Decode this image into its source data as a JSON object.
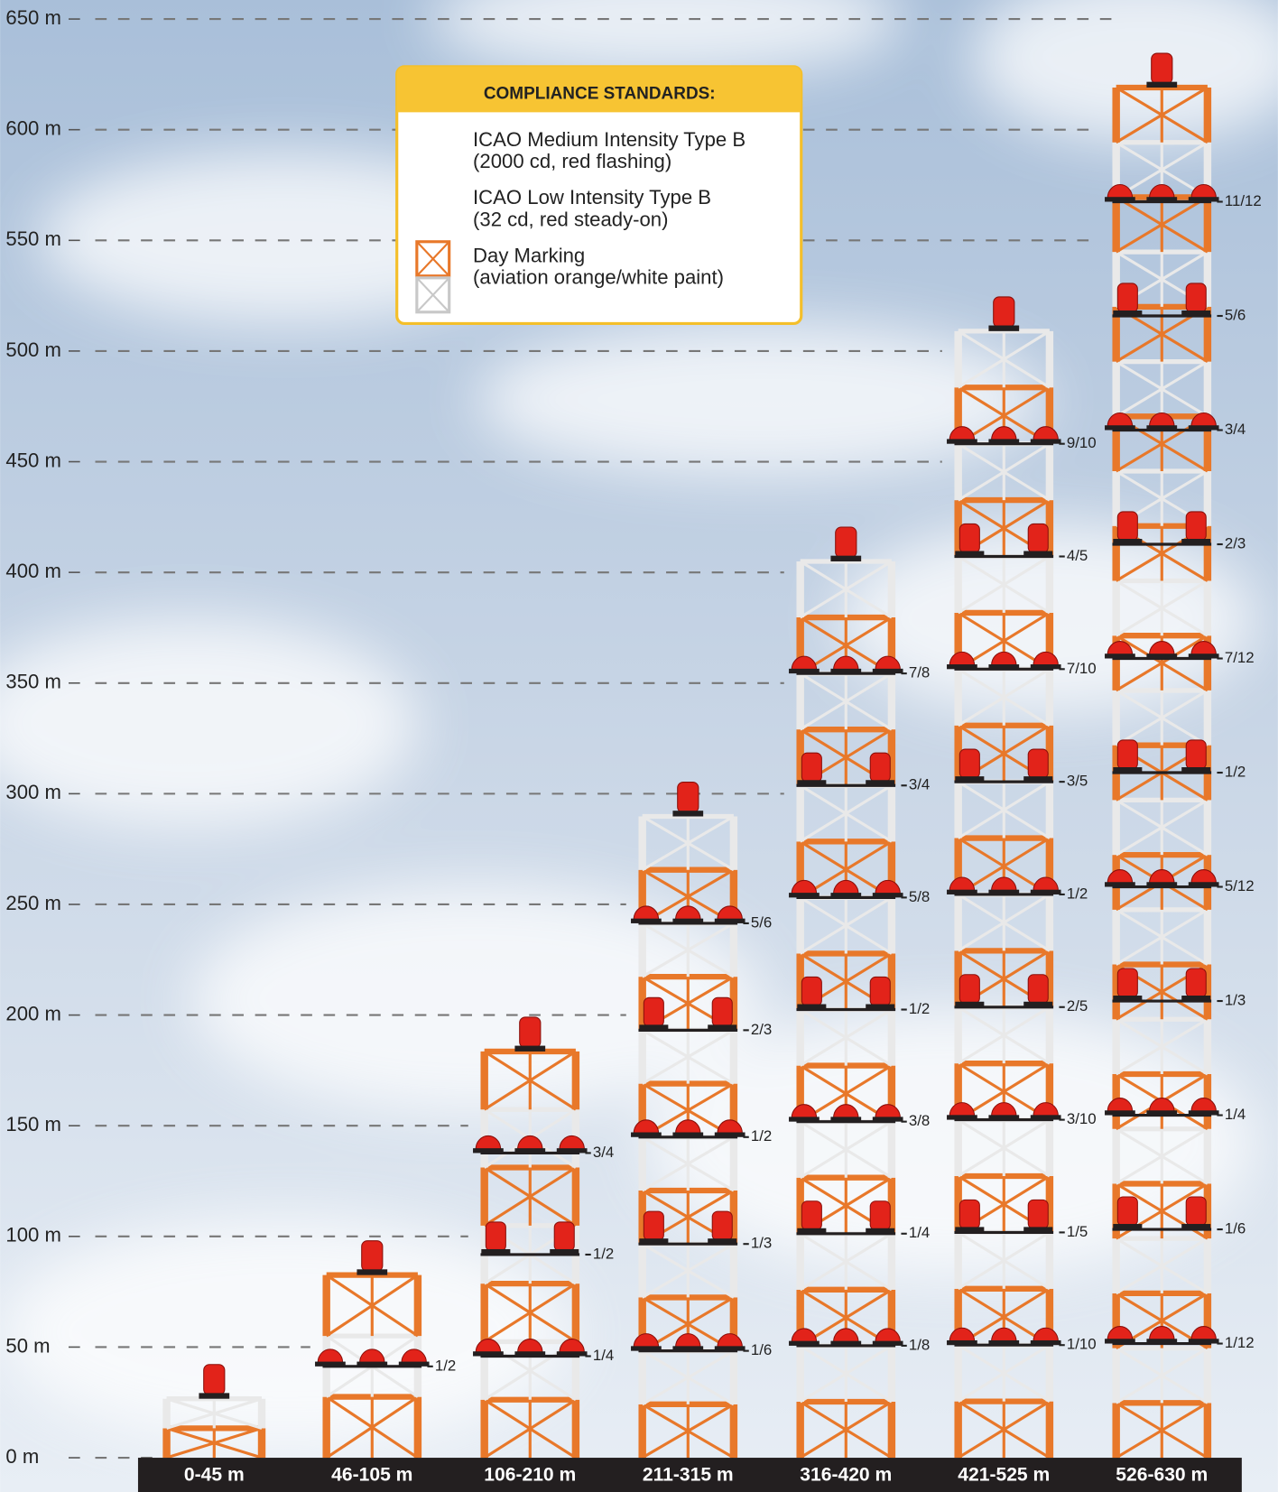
{
  "axis": {
    "ylim": [
      0,
      650
    ],
    "ticks": [
      {
        "value": 0,
        "label": "0 m"
      },
      {
        "value": 50,
        "label": "50 m"
      },
      {
        "value": 100,
        "label": "100 m"
      },
      {
        "value": 150,
        "label": "150 m"
      },
      {
        "value": 200,
        "label": "200 m"
      },
      {
        "value": 250,
        "label": "250 m"
      },
      {
        "value": 300,
        "label": "300 m"
      },
      {
        "value": 350,
        "label": "350 m"
      },
      {
        "value": 400,
        "label": "400 m"
      },
      {
        "value": 450,
        "label": "450 m"
      },
      {
        "value": 500,
        "label": "500 m"
      },
      {
        "value": 550,
        "label": "550 m"
      },
      {
        "value": 600,
        "label": "600 m"
      },
      {
        "value": 650,
        "label": "650 m"
      }
    ]
  },
  "legend": {
    "title": "COMPLIANCE STANDARDS:",
    "items": [
      {
        "line1": "ICAO Medium Intensity Type B",
        "line2": "(2000 cd, red flashing)"
      },
      {
        "line1": "ICAO Low Intensity Type B",
        "line2": "(32 cd, red steady-on)"
      },
      {
        "line1": "Day Marking",
        "line2": "(aviation orange/white paint)"
      }
    ]
  },
  "towers": [
    {
      "label": "0-45 m",
      "lights": []
    },
    {
      "label": "46-105 m",
      "lights": [
        "1/2"
      ]
    },
    {
      "label": "106-210 m",
      "lights": [
        "1/4",
        "1/2",
        "3/4"
      ]
    },
    {
      "label": "211-315 m",
      "lights": [
        "1/6",
        "1/3",
        "1/2",
        "2/3",
        "5/6"
      ]
    },
    {
      "label": "316-420 m",
      "lights": [
        "1/8",
        "1/4",
        "3/8",
        "1/2",
        "5/8",
        "3/4",
        "7/8"
      ]
    },
    {
      "label": "421-525 m",
      "lights": [
        "1/10",
        "1/5",
        "3/10",
        "2/5",
        "1/2",
        "3/5",
        "7/10",
        "4/5",
        "9/10"
      ]
    },
    {
      "label": "526-630 m",
      "lights": [
        "1/12",
        "1/6",
        "1/4",
        "1/3",
        "5/12",
        "1/2",
        "7/12",
        "2/3",
        "3/4",
        "5/6",
        "11/12"
      ]
    }
  ]
}
